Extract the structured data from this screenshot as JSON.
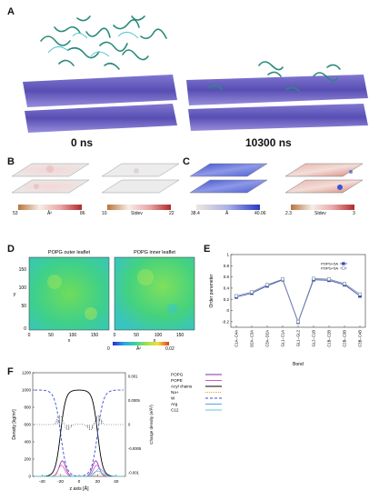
{
  "panels": {
    "A": {
      "label": "A",
      "time_left": "0 ns",
      "time_right": "10300 ns"
    },
    "B": {
      "label": "B",
      "left": {
        "min": "53",
        "unit": "Å²",
        "max": "86"
      },
      "right": {
        "min": "10",
        "unit": "Stdev",
        "max": "22"
      }
    },
    "C": {
      "label": "C",
      "left": {
        "min": "38.4",
        "unit": "Å",
        "max": "40.06"
      },
      "right": {
        "min": "2.3",
        "unit": "Stdev",
        "max": "3"
      }
    },
    "D": {
      "label": "D",
      "titles": [
        "POPG outer leaflet",
        "POPG inner leaflet"
      ],
      "xlabel": "x",
      "ylabel": "y",
      "ticks": [
        "0",
        "50",
        "100",
        "150"
      ],
      "colorbar": {
        "min": "0",
        "unit": "Å²",
        "max": "0.02"
      }
    },
    "E": {
      "label": "E"
    },
    "F": {
      "label": "F"
    }
  },
  "chart_data": [
    {
      "type": "line",
      "panel": "E",
      "xlabel": "Bond",
      "ylabel": "Order parameter",
      "ylim": [
        -0.3,
        1
      ],
      "categories": [
        "C1A−C4A",
        "D2A−C3A",
        "C3A−D2A",
        "GL1−C1A",
        "GL1−GL2",
        "GL2−C1B",
        "C1B−C2B",
        "C2B−C3B",
        "C3B−C4B"
      ],
      "yticks": [
        "-0.2",
        "0",
        "0.2",
        "0.4",
        "0.6",
        "0.8",
        "1"
      ],
      "series": [
        {
          "name": "POPG+5A",
          "color": "#3344aa",
          "values": [
            0.24,
            0.31,
            0.44,
            0.55,
            -0.21,
            0.55,
            0.54,
            0.46,
            0.26
          ]
        },
        {
          "name": "POPG+5A",
          "color": "#7788aa",
          "values": [
            0.26,
            0.33,
            0.46,
            0.56,
            -0.2,
            0.57,
            0.56,
            0.48,
            0.29
          ]
        }
      ]
    },
    {
      "type": "line",
      "panel": "F",
      "xlabel": "z axis [Å]",
      "ylabel": "Density [kg/m³]",
      "y2label": "Charge density (e/Å³)",
      "xlim": [
        -50,
        50
      ],
      "ylim": [
        0,
        1200
      ],
      "xticks": [
        "-40",
        "-20",
        "0",
        "20",
        "40"
      ],
      "yticks": [
        "0",
        "200",
        "400",
        "600",
        "800",
        "1000",
        "1200"
      ],
      "y2ticks": [
        "0.001",
        "0.0005",
        "0",
        "-0.0005",
        "-0.001"
      ],
      "legend": [
        "POPG",
        "POPE",
        "Acyl chains",
        "Na+",
        "W",
        "Arg",
        "C12"
      ]
    }
  ]
}
